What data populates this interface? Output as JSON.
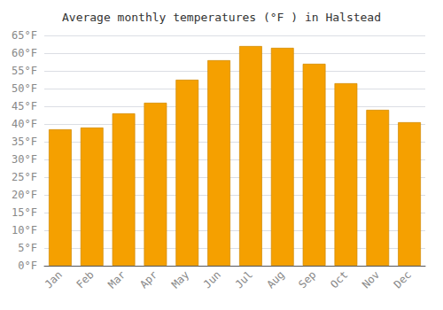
{
  "chart_data": {
    "type": "bar",
    "title": "Average monthly temperatures (°F ) in Halstead",
    "categories": [
      "Jan",
      "Feb",
      "Mar",
      "Apr",
      "May",
      "Jun",
      "Jul",
      "Aug",
      "Sep",
      "Oct",
      "Nov",
      "Dec"
    ],
    "values": [
      38.5,
      39.0,
      43.0,
      46.0,
      52.5,
      58.0,
      62.0,
      61.5,
      57.0,
      51.5,
      44.0,
      40.5
    ],
    "color": "#F5A000",
    "ylim": [
      0,
      65
    ],
    "yticks": [
      {
        "value": 0,
        "label": "0°F"
      },
      {
        "value": 5,
        "label": "5°F"
      },
      {
        "value": 10,
        "label": "10°F"
      },
      {
        "value": 15,
        "label": "15°F"
      },
      {
        "value": 20,
        "label": "20°F"
      },
      {
        "value": 25,
        "label": "25°F"
      },
      {
        "value": 30,
        "label": "30°F"
      },
      {
        "value": 35,
        "label": "35°F"
      },
      {
        "value": 40,
        "label": "40°F"
      },
      {
        "value": 45,
        "label": "45°F"
      },
      {
        "value": 50,
        "label": "50°F"
      },
      {
        "value": 55,
        "label": "55°F"
      },
      {
        "value": 60,
        "label": "60°F"
      },
      {
        "value": 65,
        "label": "65°F"
      }
    ],
    "grid": true
  }
}
